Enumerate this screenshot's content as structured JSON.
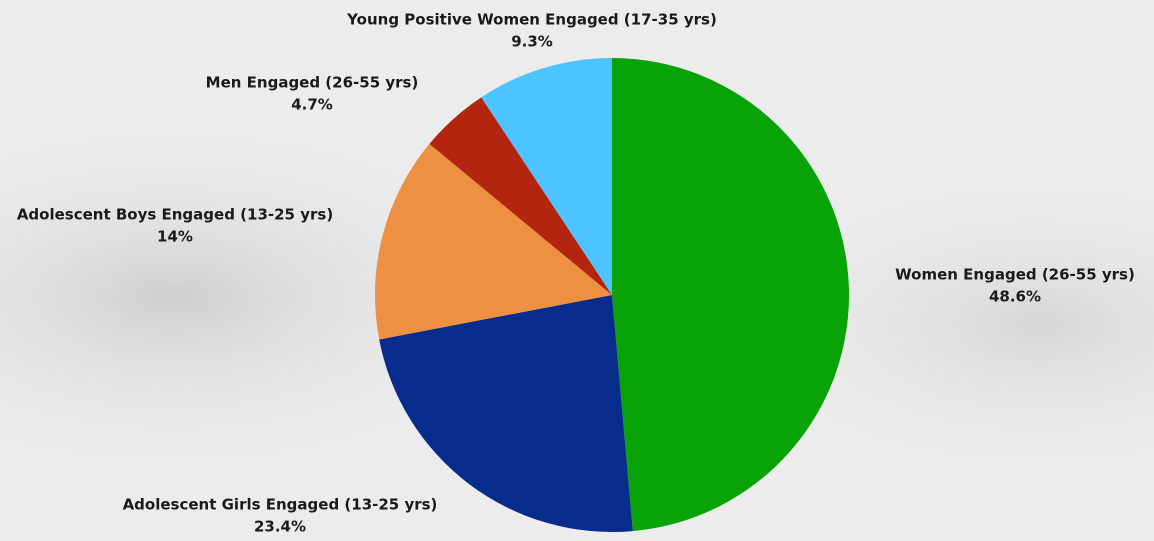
{
  "chart_data": {
    "type": "pie",
    "categories": [
      "Women Engaged (26-55 yrs)",
      "Adolescent Girls Engaged (13-25 yrs)",
      "Adolescent Boys Engaged (13-25 yrs)",
      "Men Engaged (26-55 yrs)",
      "Young Positive Women Engaged (17-35 yrs)"
    ],
    "values": [
      48.6,
      23.4,
      14,
      4.7,
      9.3
    ],
    "value_labels": [
      "48.6%",
      "23.4%",
      "14%",
      "4.7%",
      "9.3%"
    ],
    "colors": [
      "#07a307",
      "#082c8c",
      "#ee9041",
      "#b4250f",
      "#4dc4ff"
    ]
  }
}
